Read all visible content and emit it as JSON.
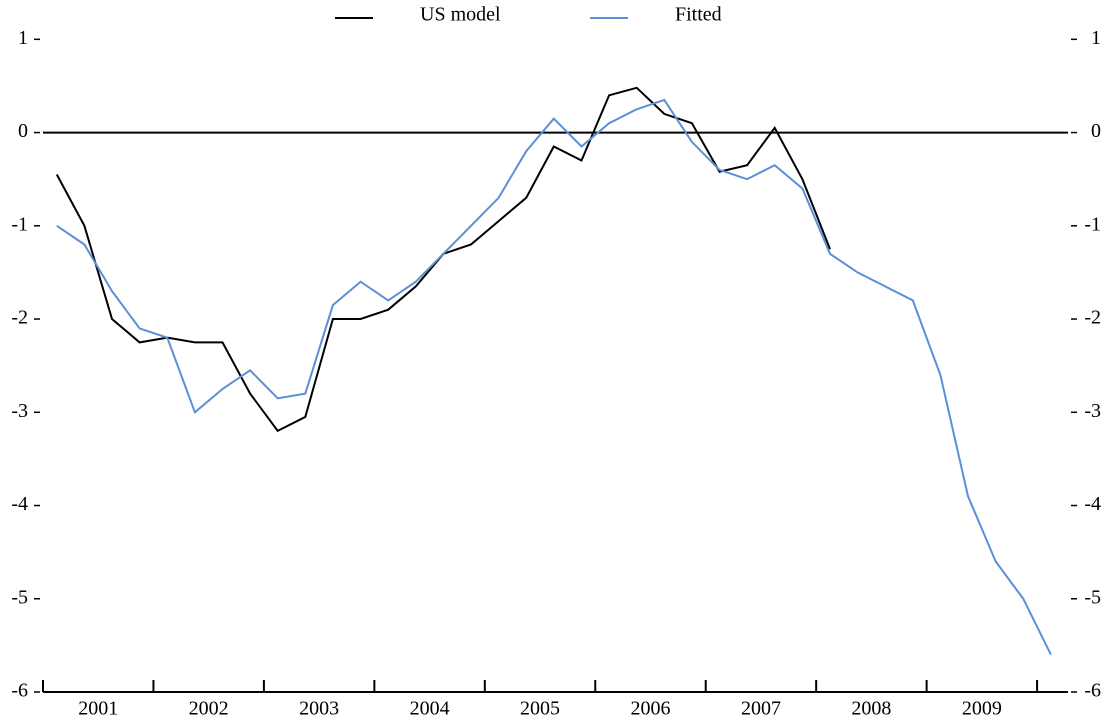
{
  "chart_data": {
    "type": "line",
    "x": [
      2001.125,
      2001.375,
      2001.625,
      2001.875,
      2002.125,
      2002.375,
      2002.625,
      2002.875,
      2003.125,
      2003.375,
      2003.625,
      2003.875,
      2004.125,
      2004.375,
      2004.625,
      2004.875,
      2005.125,
      2005.375,
      2005.625,
      2005.875,
      2006.125,
      2006.375,
      2006.625,
      2006.875,
      2007.125,
      2007.375,
      2007.625,
      2007.875,
      2008.125,
      2008.375,
      2008.625,
      2008.875,
      2009.125,
      2009.375,
      2009.625,
      2009.875,
      2010.125
    ],
    "series": [
      {
        "name": "US model",
        "color": "#000000",
        "values": [
          -0.45,
          -1.0,
          -2.0,
          -2.25,
          -2.2,
          -2.25,
          -2.25,
          -2.8,
          -3.2,
          -3.05,
          -2.0,
          -2.0,
          -1.9,
          -1.65,
          -1.3,
          -1.2,
          -0.95,
          -0.7,
          -0.15,
          -0.3,
          0.4,
          0.48,
          0.2,
          0.1,
          -0.42,
          -0.35,
          0.05,
          -0.5,
          -1.25,
          null,
          null,
          null,
          null,
          null,
          null,
          null,
          null
        ]
      },
      {
        "name": "Fitted",
        "color": "#5b8fd6",
        "values": [
          -1.0,
          -1.2,
          -1.7,
          -2.1,
          -2.2,
          -3.0,
          -2.75,
          -2.55,
          -2.85,
          -2.8,
          -1.85,
          -1.6,
          -1.8,
          -1.6,
          -1.3,
          -1.0,
          -0.7,
          -0.2,
          0.15,
          -0.15,
          0.1,
          0.25,
          0.35,
          -0.1,
          -0.4,
          -0.5,
          -0.35,
          -0.6,
          -1.3,
          -1.5,
          -1.65,
          -1.8,
          -2.6,
          -3.9,
          -4.6,
          -5.0,
          -5.6
        ]
      }
    ],
    "xlim": [
      2001,
      2010.28
    ],
    "xticks": [
      {
        "value": 2001.5,
        "label": "2001"
      },
      {
        "value": 2002.5,
        "label": "2002"
      },
      {
        "value": 2003.5,
        "label": "2003"
      },
      {
        "value": 2004.5,
        "label": "2004"
      },
      {
        "value": 2005.5,
        "label": "2005"
      },
      {
        "value": 2006.5,
        "label": "2006"
      },
      {
        "value": 2007.5,
        "label": "2007"
      },
      {
        "value": 2008.5,
        "label": "2008"
      },
      {
        "value": 2009.5,
        "label": "2009"
      }
    ],
    "xminor_ticks": [
      2001,
      2002,
      2003,
      2004,
      2005,
      2006,
      2007,
      2008,
      2009,
      2010
    ],
    "ylim": [
      -6,
      1.1
    ],
    "yticks": [
      1,
      0,
      -1,
      -2,
      -3,
      -4,
      -5,
      -6
    ],
    "y2lim": [
      -6,
      1.1
    ],
    "y2ticks": [
      1,
      0,
      -1,
      -2,
      -3,
      -4,
      -5,
      -6
    ],
    "zero_line": true,
    "legend": "top"
  }
}
